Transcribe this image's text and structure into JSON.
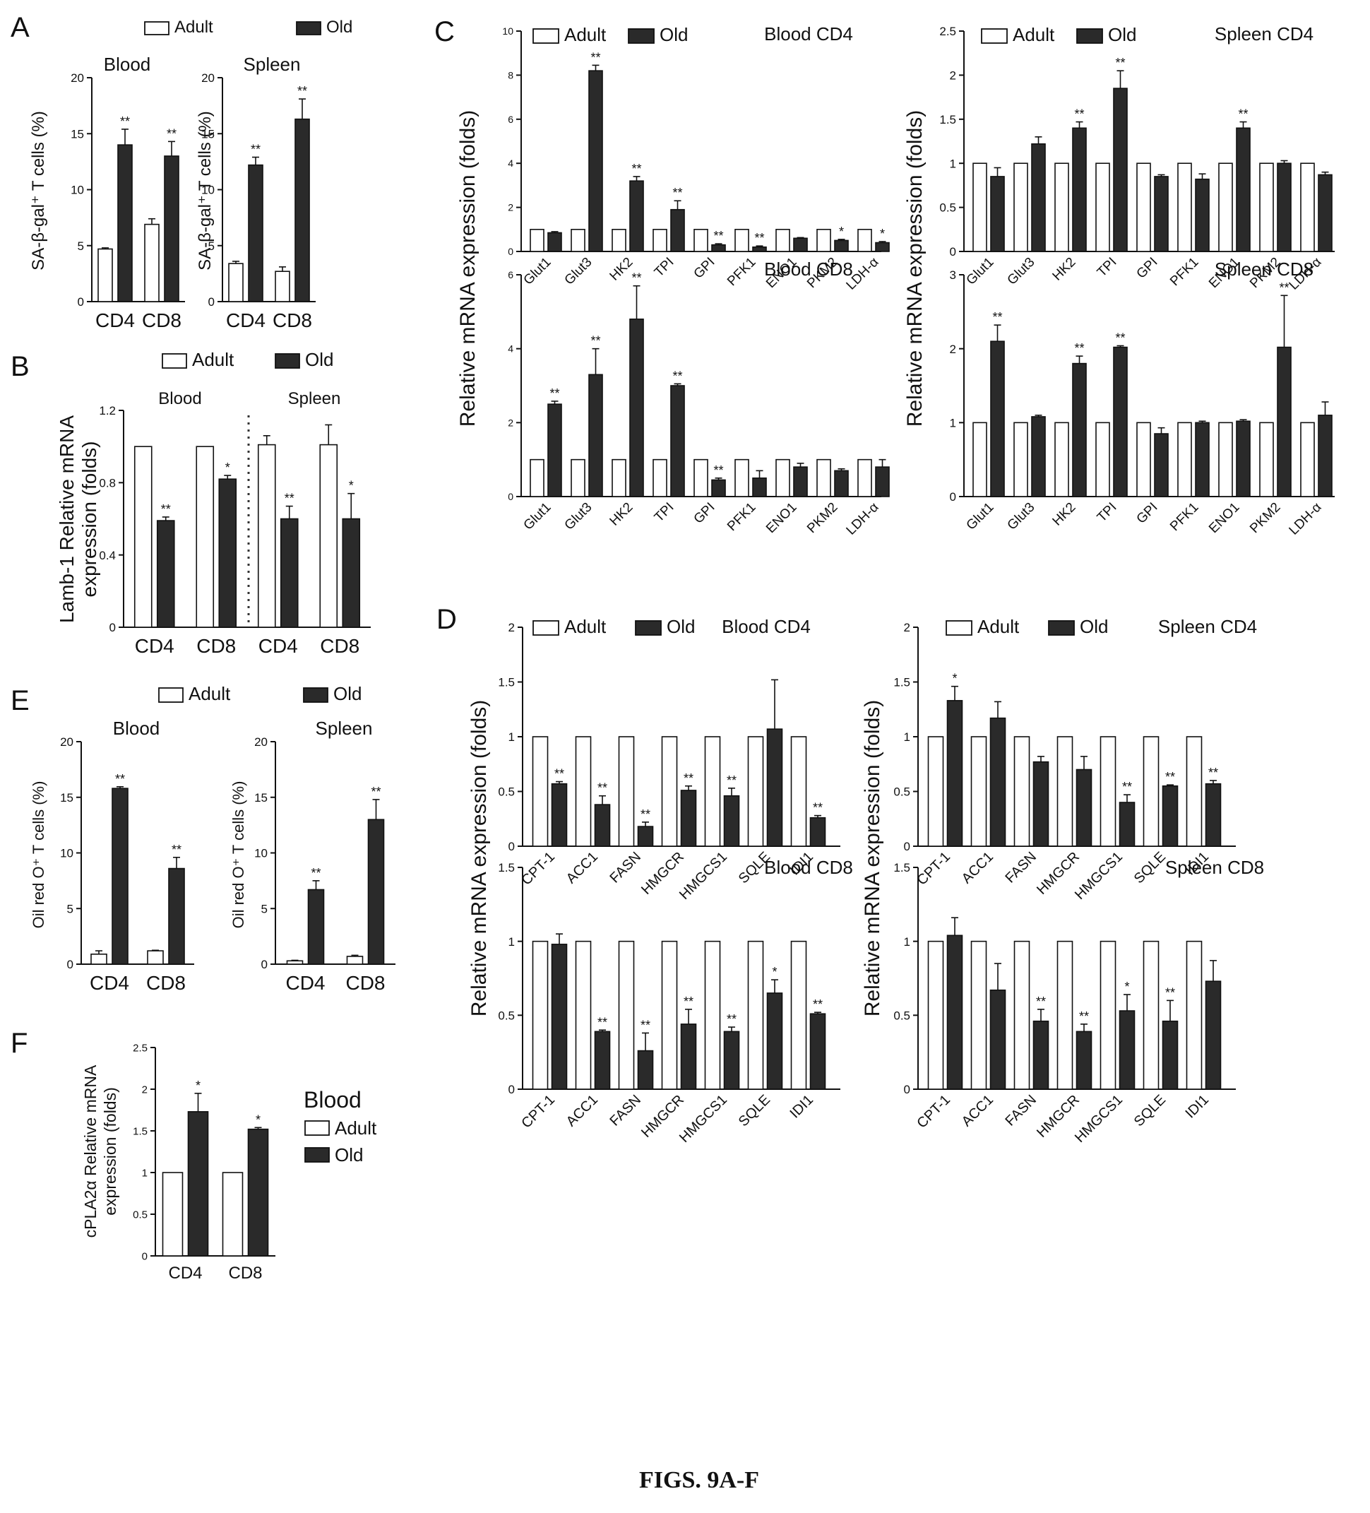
{
  "legend": {
    "adult": "Adult",
    "old": "Old"
  },
  "caption": "FIGS. 9A-F",
  "panels": {
    "A": {
      "letter": "A",
      "ylabel": "SA-β-gal⁺ T cells (%)"
    },
    "B": {
      "letter": "B",
      "ylabel": "Lamb-1 Relative mRNA expression (folds)"
    },
    "C": {
      "letter": "C",
      "ylabel": "Relative mRNA expression (folds)"
    },
    "D": {
      "letter": "D",
      "ylabel": "Relative mRNA expression (folds)"
    },
    "E": {
      "letter": "E",
      "ylabel": "Oil red O⁺ T cells (%)"
    },
    "F": {
      "letter": "F",
      "ylabel": "cPLA2α Relative mRNA expression (folds)",
      "legend_title": "Blood"
    }
  },
  "chart_data": [
    {
      "id": "A1",
      "panel": "A",
      "type": "bar",
      "title": "Blood",
      "ylabel": "SA-β-gal⁺ T cells (%)",
      "ylim": [
        0,
        20
      ],
      "yticks": [
        0,
        5,
        10,
        15,
        20
      ],
      "categories": [
        "CD4",
        "CD8"
      ],
      "series": [
        {
          "name": "Adult",
          "values": [
            4.7,
            6.9
          ],
          "errors": [
            0.1,
            0.5
          ],
          "marks": [
            "",
            ""
          ]
        },
        {
          "name": "Old",
          "values": [
            14.0,
            13.0
          ],
          "errors": [
            1.4,
            1.3
          ],
          "marks": [
            "**",
            "**"
          ]
        }
      ]
    },
    {
      "id": "A2",
      "panel": "A",
      "type": "bar",
      "title": "Spleen",
      "ylabel": "SA-β-gal⁺ T cells (%)",
      "ylim": [
        0,
        20
      ],
      "yticks": [
        0,
        5,
        10,
        15,
        20
      ],
      "categories": [
        "CD4",
        "CD8"
      ],
      "series": [
        {
          "name": "Adult",
          "values": [
            3.4,
            2.7
          ],
          "errors": [
            0.2,
            0.4
          ],
          "marks": [
            "",
            ""
          ]
        },
        {
          "name": "Old",
          "values": [
            12.2,
            16.3
          ],
          "errors": [
            0.7,
            1.8
          ],
          "marks": [
            "**",
            "**"
          ]
        }
      ]
    },
    {
      "id": "B",
      "panel": "B",
      "type": "bar",
      "ylabel": "Lamb-1 Relative mRNA expression (folds)",
      "ylim": [
        0,
        1.2
      ],
      "yticks": [
        0,
        0.4,
        0.8,
        1.2
      ],
      "categories": [
        "CD4",
        "CD8",
        "CD4",
        "CD8"
      ],
      "groups": [
        "Blood",
        "Spleen"
      ],
      "series": [
        {
          "name": "Adult",
          "values": [
            1.0,
            1.0,
            1.01,
            1.01
          ],
          "errors": [
            0,
            0,
            0.05,
            0.11
          ],
          "marks": [
            "",
            "",
            "",
            ""
          ]
        },
        {
          "name": "Old",
          "values": [
            0.59,
            0.82,
            0.6,
            0.6
          ],
          "errors": [
            0.02,
            0.02,
            0.07,
            0.14
          ],
          "marks": [
            "**",
            "*",
            "**",
            "*"
          ]
        }
      ]
    },
    {
      "id": "C1",
      "panel": "C",
      "type": "bar",
      "title": "Blood CD4",
      "ylim": [
        0,
        10
      ],
      "yticks": [
        0,
        2,
        4,
        6,
        8,
        10
      ],
      "categories": [
        "Glut1",
        "Glut3",
        "HK2",
        "TPI",
        "GPI",
        "PFK1",
        "ENO1",
        "PKM2",
        "LDH-α"
      ],
      "series": [
        {
          "name": "Adult",
          "values": [
            1,
            1,
            1,
            1,
            1,
            1,
            1,
            1,
            1
          ],
          "errors": [
            0,
            0,
            0,
            0,
            0,
            0,
            0,
            0,
            0
          ],
          "marks": [
            "",
            "",
            "",
            "",
            "",
            "",
            "",
            "",
            ""
          ]
        },
        {
          "name": "Old",
          "values": [
            0.85,
            8.2,
            3.2,
            1.9,
            0.3,
            0.2,
            0.6,
            0.5,
            0.4
          ],
          "errors": [
            0.05,
            0.25,
            0.2,
            0.4,
            0.05,
            0.05,
            0.03,
            0.05,
            0.05
          ],
          "marks": [
            "",
            "**",
            "**",
            "**",
            "**",
            "**",
            "",
            "*",
            "*"
          ]
        }
      ]
    },
    {
      "id": "C2",
      "panel": "C",
      "type": "bar",
      "title": "Blood CD8",
      "ylim": [
        0,
        6
      ],
      "yticks": [
        0,
        2,
        4,
        6
      ],
      "categories": [
        "Glut1",
        "Glut3",
        "HK2",
        "TPI",
        "GPI",
        "PFK1",
        "ENO1",
        "PKM2",
        "LDH-α"
      ],
      "series": [
        {
          "name": "Adult",
          "values": [
            1,
            1,
            1,
            1,
            1,
            1,
            1,
            1,
            1
          ],
          "errors": [
            0,
            0,
            0,
            0,
            0,
            0,
            0,
            0,
            0
          ],
          "marks": [
            "",
            "",
            "",
            "",
            "",
            "",
            "",
            "",
            ""
          ]
        },
        {
          "name": "Old",
          "values": [
            2.5,
            3.3,
            4.8,
            3.0,
            0.45,
            0.5,
            0.8,
            0.7,
            0.8
          ],
          "errors": [
            0.08,
            0.7,
            0.9,
            0.05,
            0.05,
            0.2,
            0.1,
            0.05,
            0.2
          ],
          "marks": [
            "**",
            "**",
            "**",
            "**",
            "**",
            "",
            "",
            "",
            ""
          ]
        }
      ]
    },
    {
      "id": "C3",
      "panel": "C",
      "type": "bar",
      "title": "Spleen CD4",
      "ylim": [
        0,
        2.5
      ],
      "yticks": [
        0,
        0.5,
        1.0,
        1.5,
        2.0,
        2.5
      ],
      "categories": [
        "Glut1",
        "Glut3",
        "HK2",
        "TPI",
        "GPI",
        "PFK1",
        "ENO1",
        "PKM2",
        "LDH-α"
      ],
      "series": [
        {
          "name": "Adult",
          "values": [
            1,
            1,
            1,
            1,
            1,
            1,
            1,
            1,
            1
          ],
          "errors": [
            0,
            0,
            0,
            0,
            0,
            0,
            0,
            0,
            0
          ],
          "marks": [
            "",
            "",
            "",
            "",
            "",
            "",
            "",
            "",
            ""
          ]
        },
        {
          "name": "Old",
          "values": [
            0.85,
            1.22,
            1.4,
            1.85,
            0.85,
            0.82,
            1.4,
            1.0,
            0.87
          ],
          "errors": [
            0.1,
            0.08,
            0.07,
            0.2,
            0.02,
            0.06,
            0.07,
            0.03,
            0.03
          ],
          "marks": [
            "",
            "",
            "**",
            "**",
            "",
            "",
            "**",
            "",
            ""
          ]
        }
      ]
    },
    {
      "id": "C4",
      "panel": "C",
      "type": "bar",
      "title": "Spleen CD8",
      "ylim": [
        0,
        3
      ],
      "yticks": [
        0,
        1,
        2,
        3
      ],
      "categories": [
        "Glut1",
        "Glut3",
        "HK2",
        "TPI",
        "GPI",
        "PFK1",
        "ENO1",
        "PKM2",
        "LDH-α"
      ],
      "series": [
        {
          "name": "Adult",
          "values": [
            1,
            1,
            1,
            1,
            1,
            1,
            1,
            1,
            1
          ],
          "errors": [
            0,
            0,
            0,
            0,
            0,
            0,
            0,
            0,
            0
          ],
          "marks": [
            "",
            "",
            "",
            "",
            "",
            "",
            "",
            "",
            ""
          ]
        },
        {
          "name": "Old",
          "values": [
            2.1,
            1.08,
            1.8,
            2.02,
            0.85,
            1.0,
            1.02,
            2.02,
            1.1
          ],
          "errors": [
            0.22,
            0.02,
            0.1,
            0.02,
            0.08,
            0.02,
            0.02,
            0.7,
            0.18
          ],
          "marks": [
            "**",
            "",
            "**",
            "**",
            "",
            "",
            "",
            "**",
            ""
          ]
        }
      ]
    },
    {
      "id": "D1",
      "panel": "D",
      "type": "bar",
      "title": "Blood CD4",
      "ylim": [
        0,
        2.0
      ],
      "yticks": [
        0,
        0.5,
        1.0,
        1.5,
        2.0
      ],
      "categories": [
        "CPT-1",
        "ACC1",
        "FASN",
        "HMGCR",
        "HMGCS1",
        "SQLE",
        "IDI1"
      ],
      "series": [
        {
          "name": "Adult",
          "values": [
            1,
            1,
            1,
            1,
            1,
            1,
            1
          ],
          "errors": [
            0,
            0,
            0,
            0,
            0,
            0,
            0
          ],
          "marks": [
            "",
            "",
            "",
            "",
            "",
            "",
            ""
          ]
        },
        {
          "name": "Old",
          "values": [
            0.57,
            0.38,
            0.18,
            0.51,
            0.46,
            1.07,
            0.26
          ],
          "errors": [
            0.02,
            0.08,
            0.04,
            0.04,
            0.07,
            0.45,
            0.02
          ],
          "marks": [
            "**",
            "**",
            "**",
            "**",
            "**",
            "",
            "**"
          ]
        }
      ]
    },
    {
      "id": "D2",
      "panel": "D",
      "type": "bar",
      "title": "Blood CD8",
      "ylim": [
        0,
        1.5
      ],
      "yticks": [
        0,
        0.5,
        1.0,
        1.5
      ],
      "categories": [
        "CPT-1",
        "ACC1",
        "FASN",
        "HMGCR",
        "HMGCS1",
        "SQLE",
        "IDI1"
      ],
      "series": [
        {
          "name": "Adult",
          "values": [
            1,
            1,
            1,
            1,
            1,
            1,
            1
          ],
          "errors": [
            0,
            0,
            0,
            0,
            0,
            0,
            0
          ],
          "marks": [
            "",
            "",
            "",
            "",
            "",
            "",
            ""
          ]
        },
        {
          "name": "Old",
          "values": [
            0.98,
            0.39,
            0.26,
            0.44,
            0.39,
            0.65,
            0.51
          ],
          "errors": [
            0.07,
            0.01,
            0.12,
            0.1,
            0.03,
            0.09,
            0.01
          ],
          "marks": [
            "",
            "**",
            "**",
            "**",
            "**",
            "*",
            "**"
          ]
        }
      ]
    },
    {
      "id": "D3",
      "panel": "D",
      "type": "bar",
      "title": "Spleen CD4",
      "ylim": [
        0,
        2.0
      ],
      "yticks": [
        0,
        0.5,
        1.0,
        1.5,
        2.0
      ],
      "categories": [
        "CPT-1",
        "ACC1",
        "FASN",
        "HMGCR",
        "HMGCS1",
        "SQLE",
        "IDI1"
      ],
      "series": [
        {
          "name": "Adult",
          "values": [
            1,
            1,
            1,
            1,
            1,
            1,
            1
          ],
          "errors": [
            0,
            0,
            0,
            0,
            0,
            0,
            0
          ],
          "marks": [
            "",
            "",
            "",
            "",
            "",
            "",
            ""
          ]
        },
        {
          "name": "Old",
          "values": [
            1.33,
            1.17,
            0.77,
            0.7,
            0.4,
            0.55,
            0.57
          ],
          "errors": [
            0.13,
            0.15,
            0.05,
            0.12,
            0.07,
            0.01,
            0.03
          ],
          "marks": [
            "*",
            "",
            "",
            "",
            "**",
            "**",
            "**"
          ]
        }
      ]
    },
    {
      "id": "D4",
      "panel": "D",
      "type": "bar",
      "title": "Spleen CD8",
      "ylim": [
        0,
        1.5
      ],
      "yticks": [
        0,
        0.5,
        1.0,
        1.5
      ],
      "categories": [
        "CPT-1",
        "ACC1",
        "FASN",
        "HMGCR",
        "HMGCS1",
        "SQLE",
        "IDI1"
      ],
      "series": [
        {
          "name": "Adult",
          "values": [
            1,
            1,
            1,
            1,
            1,
            1,
            1
          ],
          "errors": [
            0,
            0,
            0,
            0,
            0,
            0,
            0
          ],
          "marks": [
            "",
            "",
            "",
            "",
            "",
            "",
            ""
          ]
        },
        {
          "name": "Old",
          "values": [
            1.04,
            0.67,
            0.46,
            0.39,
            0.53,
            0.46,
            0.73
          ],
          "errors": [
            0.12,
            0.18,
            0.08,
            0.05,
            0.11,
            0.14,
            0.14
          ],
          "marks": [
            "",
            "",
            "**",
            "**",
            "*",
            "**",
            ""
          ]
        }
      ]
    },
    {
      "id": "E1",
      "panel": "E",
      "type": "bar",
      "title": "Blood",
      "ylabel": "Oil red O⁺ T cells (%)",
      "ylim": [
        0,
        20
      ],
      "yticks": [
        0,
        5,
        10,
        15,
        20
      ],
      "categories": [
        "CD4",
        "CD8"
      ],
      "series": [
        {
          "name": "Adult",
          "values": [
            0.9,
            1.2
          ],
          "errors": [
            0.3,
            0.05
          ],
          "marks": [
            "",
            ""
          ]
        },
        {
          "name": "Old",
          "values": [
            15.8,
            8.6
          ],
          "errors": [
            0.15,
            1.0
          ],
          "marks": [
            "**",
            "**"
          ]
        }
      ]
    },
    {
      "id": "E2",
      "panel": "E",
      "type": "bar",
      "title": "Spleen",
      "ylabel": "Oil red O⁺ T cells (%)",
      "ylim": [
        0,
        20
      ],
      "yticks": [
        0,
        5,
        10,
        15,
        20
      ],
      "categories": [
        "CD4",
        "CD8"
      ],
      "series": [
        {
          "name": "Adult",
          "values": [
            0.3,
            0.7
          ],
          "errors": [
            0.05,
            0.1
          ],
          "marks": [
            "",
            ""
          ]
        },
        {
          "name": "Old",
          "values": [
            6.7,
            13.0
          ],
          "errors": [
            0.8,
            1.8
          ],
          "marks": [
            "**",
            "**"
          ]
        }
      ]
    },
    {
      "id": "F",
      "panel": "F",
      "type": "bar",
      "ylabel": "cPLA2α Relative mRNA expression (folds)",
      "ylim": [
        0,
        2.5
      ],
      "yticks": [
        0,
        0.5,
        1.0,
        1.5,
        2.0,
        2.5
      ],
      "categories": [
        "CD4",
        "CD8"
      ],
      "series": [
        {
          "name": "Adult",
          "values": [
            1.0,
            1.0
          ],
          "errors": [
            0,
            0
          ],
          "marks": [
            "",
            ""
          ]
        },
        {
          "name": "Old",
          "values": [
            1.73,
            1.52
          ],
          "errors": [
            0.22,
            0.02
          ],
          "marks": [
            "*",
            "*"
          ]
        }
      ]
    }
  ]
}
